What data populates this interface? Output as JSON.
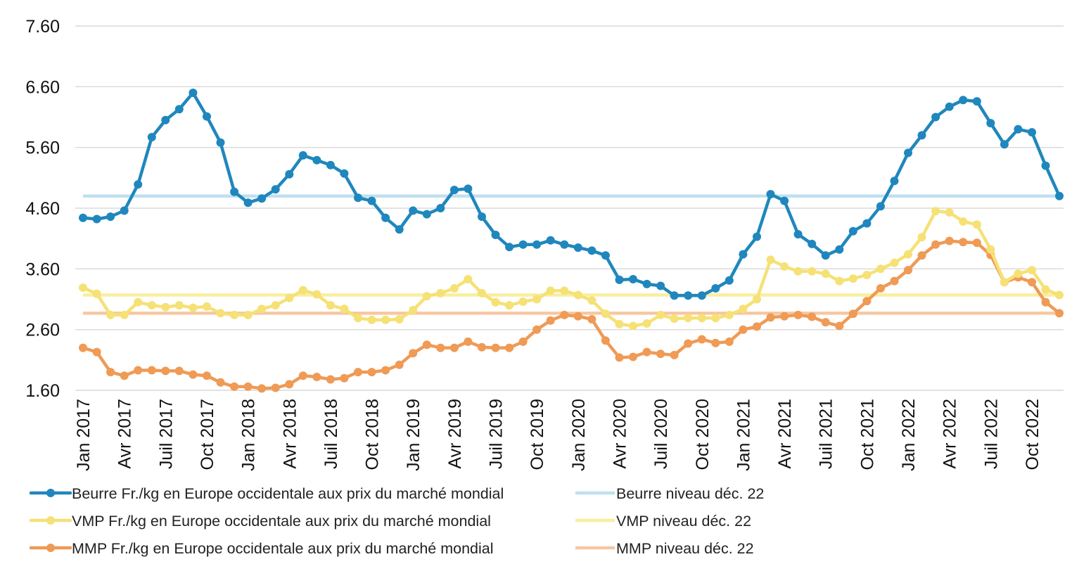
{
  "chart_data": {
    "type": "line",
    "title": "",
    "xlabel": "",
    "ylabel": "",
    "ylim": [
      1.6,
      7.6
    ],
    "yticks": [
      "7.60",
      "6.60",
      "5.60",
      "4.60",
      "3.60",
      "2.60",
      "1.60"
    ],
    "grid": true,
    "legend_position": "bottom",
    "x_tick_labels": [
      {
        "index": 0,
        "label": "Jan 2017"
      },
      {
        "index": 3,
        "label": "Avr 2017"
      },
      {
        "index": 6,
        "label": "Juil  2017"
      },
      {
        "index": 9,
        "label": "Oct 2017"
      },
      {
        "index": 12,
        "label": "Jan 2018"
      },
      {
        "index": 15,
        "label": "Avr 2018"
      },
      {
        "index": 18,
        "label": "Juil  2018"
      },
      {
        "index": 21,
        "label": "Oct 2018"
      },
      {
        "index": 24,
        "label": "Jan 2019"
      },
      {
        "index": 27,
        "label": "Avr 2019"
      },
      {
        "index": 30,
        "label": "Juil  2019"
      },
      {
        "index": 33,
        "label": "Oct 2019"
      },
      {
        "index": 36,
        "label": "Jan 2020"
      },
      {
        "index": 39,
        "label": "Avr 2020"
      },
      {
        "index": 42,
        "label": "Juil  2020"
      },
      {
        "index": 45,
        "label": "Oct 2020"
      },
      {
        "index": 48,
        "label": "Jan 2021"
      },
      {
        "index": 51,
        "label": "Avr 2021"
      },
      {
        "index": 54,
        "label": "Juil  2021"
      },
      {
        "index": 57,
        "label": "Oct 2021"
      },
      {
        "index": 60,
        "label": "Jan 2022"
      },
      {
        "index": 63,
        "label": "Avr 2022"
      },
      {
        "index": 66,
        "label": "Juil  2022"
      },
      {
        "index": 69,
        "label": "Oct 2022"
      }
    ],
    "series": [
      {
        "name": "Beurre Fr./kg en Europe occidentale aux prix du marché mondial",
        "color": "#1f87bd",
        "markers": true,
        "values": [
          4.44,
          4.42,
          4.46,
          4.56,
          4.99,
          5.77,
          6.05,
          6.23,
          6.5,
          6.11,
          5.68,
          4.87,
          4.69,
          4.76,
          4.91,
          5.16,
          5.47,
          5.39,
          5.31,
          5.17,
          4.77,
          4.72,
          4.44,
          4.25,
          4.56,
          4.5,
          4.6,
          4.9,
          4.92,
          4.46,
          4.16,
          3.96,
          4.0,
          4.0,
          4.07,
          4.0,
          3.95,
          3.9,
          3.82,
          3.42,
          3.43,
          3.35,
          3.32,
          3.16,
          3.16,
          3.16,
          3.28,
          3.41,
          3.84,
          4.13,
          4.83,
          4.72,
          4.17,
          4.01,
          3.82,
          3.92,
          4.22,
          4.35,
          4.63,
          5.05,
          5.51,
          5.8,
          6.1,
          6.27,
          6.38,
          6.36,
          6.0,
          5.65,
          5.9,
          5.85,
          5.3,
          4.8
        ]
      },
      {
        "name": "VMP Fr./kg en Europe occidentale aux prix du marché mondial",
        "color": "#f5e175",
        "markers": true,
        "values": [
          3.29,
          3.19,
          2.84,
          2.84,
          3.05,
          3.0,
          2.97,
          3.0,
          2.96,
          2.98,
          2.87,
          2.84,
          2.84,
          2.94,
          3.0,
          3.12,
          3.25,
          3.18,
          3.0,
          2.94,
          2.79,
          2.76,
          2.76,
          2.77,
          2.92,
          3.15,
          3.2,
          3.28,
          3.43,
          3.2,
          3.05,
          3.0,
          3.06,
          3.1,
          3.24,
          3.24,
          3.17,
          3.08,
          2.86,
          2.69,
          2.66,
          2.7,
          2.84,
          2.78,
          2.79,
          2.79,
          2.79,
          2.84,
          2.94,
          3.1,
          3.75,
          3.64,
          3.56,
          3.56,
          3.52,
          3.4,
          3.44,
          3.5,
          3.6,
          3.7,
          3.84,
          4.12,
          4.55,
          4.53,
          4.38,
          4.33,
          3.92,
          3.38,
          3.52,
          3.58,
          3.26,
          3.17
        ]
      },
      {
        "name": "MMP Fr./kg en Europe occidentale aux prix du marché mondial",
        "color": "#ef9a55",
        "markers": true,
        "values": [
          2.3,
          2.23,
          1.9,
          1.84,
          1.93,
          1.93,
          1.92,
          1.92,
          1.86,
          1.84,
          1.73,
          1.66,
          1.66,
          1.63,
          1.64,
          1.7,
          1.84,
          1.82,
          1.78,
          1.8,
          1.9,
          1.9,
          1.93,
          2.02,
          2.21,
          2.35,
          2.3,
          2.3,
          2.4,
          2.31,
          2.3,
          2.3,
          2.4,
          2.6,
          2.75,
          2.84,
          2.82,
          2.77,
          2.42,
          2.14,
          2.15,
          2.23,
          2.2,
          2.18,
          2.37,
          2.44,
          2.38,
          2.4,
          2.6,
          2.65,
          2.8,
          2.82,
          2.84,
          2.81,
          2.72,
          2.66,
          2.86,
          3.07,
          3.28,
          3.4,
          3.58,
          3.82,
          4.0,
          4.06,
          4.04,
          4.03,
          3.83,
          3.38,
          3.46,
          3.38,
          3.05,
          2.87
        ]
      },
      {
        "name": "Beurre niveau déc. 22",
        "color": "#bfe0f0",
        "markers": false,
        "level": 4.8
      },
      {
        "name": "VMP niveau déc. 22",
        "color": "#f8ee9e",
        "markers": false,
        "level": 3.17
      },
      {
        "name": "MMP niveau déc. 22",
        "color": "#f6c7a2",
        "markers": false,
        "level": 2.87
      }
    ]
  }
}
